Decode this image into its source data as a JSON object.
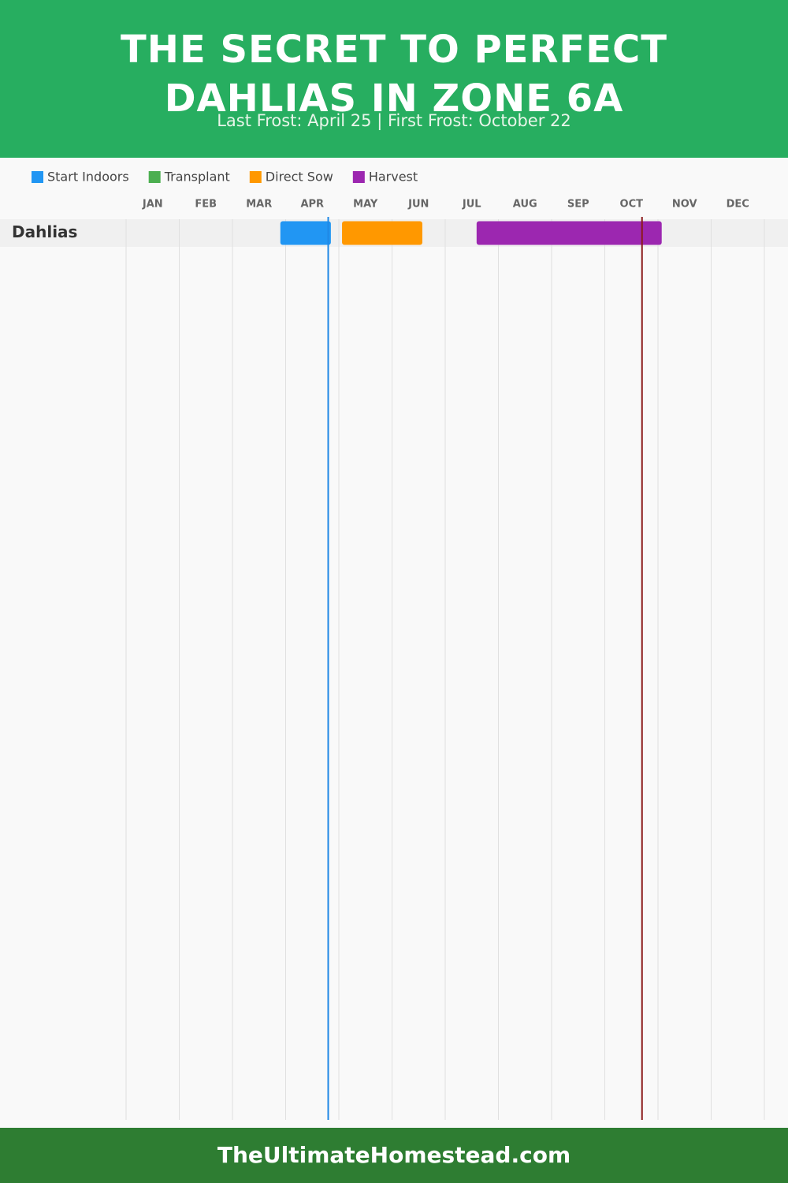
{
  "chart_data": {
    "type": "gantt",
    "title": "THE SECRET TO PERFECT DAHLIAS IN ZONE 6A",
    "subtitle": "Last Frost: April 25 | First Frost: October 22",
    "footer": "TheUltimateHomestead.com",
    "categories": [
      "Dahlias"
    ],
    "months": [
      "JAN",
      "FEB",
      "MAR",
      "APR",
      "MAY",
      "JUN",
      "JUL",
      "AUG",
      "SEP",
      "OCT",
      "NOV",
      "DEC"
    ],
    "xlim": [
      0,
      12
    ],
    "grid": true,
    "series": [
      {
        "name": "Start Indoors",
        "color": "#2196f3",
        "values": [
          [
            2.9,
            3.85
          ]
        ]
      },
      {
        "name": "Transplant",
        "color": "#4caf50",
        "values": [
          null
        ]
      },
      {
        "name": "Direct Sow",
        "color": "#ff9800",
        "values": [
          [
            4.06,
            5.57
          ]
        ]
      },
      {
        "name": "Harvest",
        "color": "#9c27b0",
        "values": [
          [
            6.59,
            10.07
          ]
        ]
      }
    ],
    "frost_lines": [
      {
        "value": 3.8,
        "color": "#1e88e5"
      },
      {
        "value": 9.7,
        "color": "#8b1a1a"
      }
    ]
  }
}
